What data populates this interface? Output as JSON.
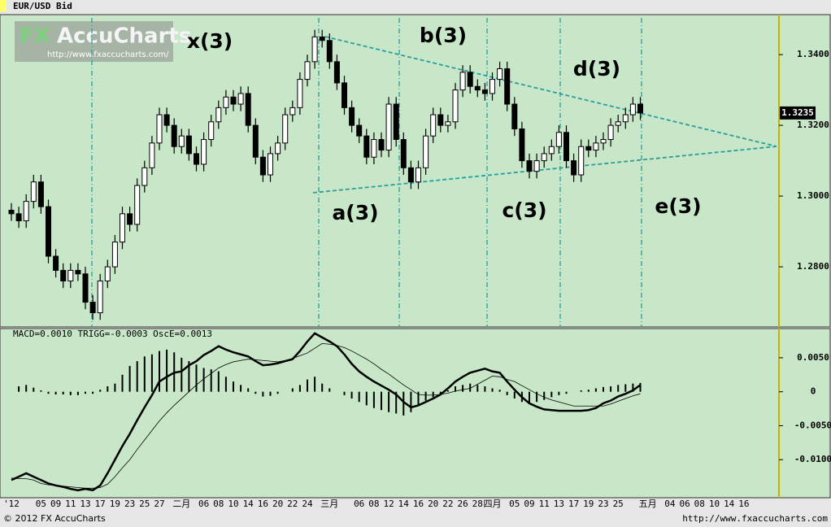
{
  "chart_data": [
    {
      "type": "candlestick",
      "title": "EUR/USD Bid",
      "watermark": [
        "FX",
        "AccuCharts",
        "http://www.fxaccucharts.com/"
      ],
      "annotations": [
        "x(3)",
        "b(3)",
        "d(3)",
        "a(3)",
        "c(3)",
        "e(3)"
      ],
      "last_label": "1.3235",
      "footer": [
        "© 2012 FX AccuCharts",
        "http://www.fxaccucharts.com"
      ],
      "background": "#c8e6c8",
      "up_color": "#ffffff",
      "down_color": "#000000",
      "categories": [
        "'12",
        null,
        null,
        null,
        "05",
        null,
        "09",
        null,
        "11",
        null,
        "13",
        null,
        "17",
        null,
        "19",
        null,
        "23",
        null,
        "25",
        null,
        "27",
        null,
        null,
        "二月",
        null,
        null,
        "06",
        null,
        "08",
        null,
        "10",
        null,
        "14",
        null,
        "16",
        null,
        "20",
        null,
        "22",
        null,
        "24",
        null,
        null,
        "三月",
        null,
        null,
        null,
        "06",
        null,
        "08",
        null,
        "12",
        null,
        "14",
        null,
        "16",
        null,
        "20",
        null,
        "22",
        null,
        "26",
        null,
        "28",
        null,
        "四月",
        null,
        null,
        "05",
        null,
        "09",
        null,
        "11",
        null,
        "13",
        null,
        "17",
        null,
        "19",
        null,
        "23",
        null,
        "25",
        null,
        null,
        null,
        "五月",
        null,
        null,
        "04",
        null,
        "06",
        null,
        "08",
        null,
        "10",
        null,
        "14",
        null,
        "16",
        null,
        null,
        null,
        null
      ],
      "open": [
        1.296,
        1.295,
        1.293,
        1.2985,
        1.304,
        1.297,
        1.283,
        1.279,
        1.276,
        1.279,
        1.278,
        1.27,
        1.267,
        1.276,
        1.28,
        1.287,
        1.295,
        1.292,
        1.303,
        1.308,
        1.315,
        1.323,
        1.32,
        1.314,
        1.317,
        1.312,
        1.309,
        1.316,
        1.321,
        1.325,
        1.328,
        1.326,
        1.329,
        1.32,
        1.311,
        1.306,
        1.312,
        1.315,
        1.323,
        1.325,
        1.333,
        1.338,
        1.345,
        1.344,
        1.338,
        1.332,
        1.325,
        1.32,
        1.317,
        1.311,
        1.316,
        1.313,
        1.326,
        1.316,
        1.308,
        1.304,
        1.308,
        1.317,
        1.323,
        1.32,
        1.321,
        1.33,
        1.335,
        1.331,
        1.33,
        1.329,
        1.333,
        1.336,
        1.326,
        1.319,
        1.31,
        1.307,
        1.31,
        1.312,
        1.314,
        1.318,
        1.31,
        1.306,
        1.314,
        1.313,
        1.315,
        1.316,
        1.32,
        1.321,
        1.323,
        1.326,
        null,
        null,
        null,
        null,
        null,
        null,
        null,
        null,
        null,
        null,
        null,
        null,
        null,
        null,
        null,
        null,
        null,
        null
      ],
      "high": [
        1.298,
        1.297,
        1.3005,
        1.306,
        1.306,
        1.299,
        1.285,
        1.281,
        1.281,
        1.281,
        1.28,
        1.272,
        1.278,
        1.282,
        1.289,
        1.297,
        1.297,
        1.305,
        1.31,
        1.317,
        1.325,
        1.325,
        1.322,
        1.319,
        1.319,
        1.314,
        1.318,
        1.323,
        1.327,
        1.33,
        1.33,
        1.331,
        1.331,
        1.322,
        1.313,
        1.314,
        1.317,
        1.325,
        1.327,
        1.335,
        1.34,
        1.347,
        1.347,
        1.346,
        1.34,
        1.334,
        1.327,
        1.322,
        1.319,
        1.318,
        1.318,
        1.328,
        1.328,
        1.318,
        1.31,
        1.31,
        1.319,
        1.325,
        1.325,
        1.323,
        1.332,
        1.337,
        1.337,
        1.333,
        1.332,
        1.335,
        1.338,
        1.338,
        1.328,
        1.321,
        1.312,
        1.312,
        1.314,
        1.316,
        1.32,
        1.32,
        1.312,
        1.316,
        1.316,
        1.317,
        1.318,
        1.322,
        1.323,
        1.325,
        1.328,
        1.328,
        null,
        null,
        null,
        null,
        null,
        null,
        null,
        null,
        null,
        null,
        null,
        null,
        null,
        null,
        null,
        null,
        null,
        null
      ],
      "low": [
        1.293,
        1.291,
        1.291,
        1.2965,
        1.295,
        1.281,
        1.277,
        1.274,
        1.274,
        1.276,
        1.268,
        1.265,
        1.265,
        1.274,
        1.278,
        1.285,
        1.29,
        1.29,
        1.301,
        1.306,
        1.313,
        1.318,
        1.312,
        1.312,
        1.31,
        1.307,
        1.307,
        1.314,
        1.319,
        1.323,
        1.324,
        1.324,
        1.318,
        1.309,
        1.304,
        1.304,
        1.31,
        1.313,
        1.321,
        1.323,
        1.331,
        1.336,
        1.342,
        1.336,
        1.33,
        1.323,
        1.318,
        1.315,
        1.309,
        1.309,
        1.311,
        1.311,
        1.314,
        1.306,
        1.302,
        1.302,
        1.306,
        1.315,
        1.318,
        1.318,
        1.319,
        1.328,
        1.329,
        1.328,
        1.327,
        1.327,
        1.331,
        1.324,
        1.317,
        1.308,
        1.305,
        1.305,
        1.308,
        1.31,
        1.312,
        1.308,
        1.304,
        1.304,
        1.311,
        1.311,
        1.313,
        1.314,
        1.318,
        1.319,
        1.321,
        1.3215,
        null,
        null,
        null,
        null,
        null,
        null,
        null,
        null,
        null,
        null,
        null,
        null,
        null,
        null,
        null,
        null,
        null,
        null
      ],
      "close": [
        1.295,
        1.293,
        1.2985,
        1.304,
        1.297,
        1.283,
        1.279,
        1.276,
        1.279,
        1.278,
        1.27,
        1.267,
        1.276,
        1.28,
        1.287,
        1.295,
        1.292,
        1.303,
        1.308,
        1.315,
        1.323,
        1.32,
        1.314,
        1.317,
        1.312,
        1.309,
        1.316,
        1.321,
        1.325,
        1.328,
        1.326,
        1.329,
        1.32,
        1.311,
        1.306,
        1.312,
        1.315,
        1.323,
        1.325,
        1.333,
        1.338,
        1.345,
        1.344,
        1.338,
        1.332,
        1.325,
        1.32,
        1.317,
        1.311,
        1.316,
        1.313,
        1.326,
        1.316,
        1.308,
        1.304,
        1.308,
        1.317,
        1.323,
        1.32,
        1.321,
        1.33,
        1.335,
        1.331,
        1.33,
        1.329,
        1.333,
        1.336,
        1.326,
        1.319,
        1.31,
        1.307,
        1.31,
        1.312,
        1.314,
        1.318,
        1.31,
        1.306,
        1.314,
        1.313,
        1.315,
        1.316,
        1.32,
        1.321,
        1.323,
        1.326,
        1.3235,
        null,
        null,
        null,
        null,
        null,
        null,
        null,
        null,
        null,
        null,
        null,
        null,
        null,
        null,
        null,
        null,
        null,
        null
      ],
      "ylim": [
        1.263,
        1.3513
      ],
      "yticks": [
        {
          "value": 1.28,
          "label": "1.2800"
        },
        {
          "value": 1.3,
          "label": "1.3000"
        },
        {
          "value": 1.32,
          "label": "1.3200"
        },
        {
          "value": 1.34,
          "label": "1.3400"
        }
      ]
    },
    {
      "type": "macd",
      "title": "MACD=0.0010 TRIGG=-0.0003 OscE=0.0013",
      "background": "#c8e6c8",
      "series": [
        {
          "color": "#000000",
          "style": "line",
          "width": 2.5,
          "values": [
            -0.013,
            -0.0125,
            -0.012,
            -0.0125,
            -0.013,
            -0.0135,
            -0.0138,
            -0.014,
            -0.0143,
            -0.0145,
            -0.0143,
            -0.0145,
            -0.0138,
            -0.012,
            -0.01,
            -0.008,
            -0.0062,
            -0.0042,
            -0.0023,
            -0.0005,
            0.0015,
            0.0022,
            0.0028,
            0.003,
            0.0039,
            0.0045,
            0.0054,
            0.006,
            0.0067,
            0.0062,
            0.0058,
            0.0055,
            0.0052,
            0.0045,
            0.0039,
            0.004,
            0.0042,
            0.0045,
            0.0048,
            0.006,
            0.0074,
            0.0086,
            0.008,
            0.0074,
            0.0067,
            0.0055,
            0.0041,
            0.003,
            0.0022,
            0.0015,
            0.0009,
            0.0003,
            -0.0004,
            -0.0015,
            -0.0023,
            -0.002,
            -0.0015,
            -0.001,
            -0.0004,
            0.0005,
            0.0015,
            0.0022,
            0.0028,
            0.0031,
            0.0034,
            0.003,
            0.0028,
            0.0015,
            0.0003,
            -0.0008,
            -0.0017,
            -0.0022,
            -0.0026,
            -0.0027,
            -0.0028,
            -0.0028,
            -0.0028,
            -0.0028,
            -0.0027,
            -0.0024,
            -0.0017,
            -0.0013,
            -0.0007,
            -0.0003,
            0.0002,
            0.001,
            null,
            null,
            null,
            null,
            null,
            null,
            null,
            null,
            null,
            null,
            null,
            null,
            null,
            null,
            null,
            null,
            null,
            null
          ]
        },
        {
          "color": "#000000",
          "style": "line",
          "width": 0.8,
          "values": [
            -0.0127,
            -0.0128,
            -0.0128,
            -0.013,
            -0.0135,
            -0.0137,
            -0.0138,
            -0.0139,
            -0.014,
            -0.0141,
            -0.0142,
            -0.0142,
            -0.0141,
            -0.0136,
            -0.0125,
            -0.0112,
            -0.01,
            -0.0085,
            -0.0071,
            -0.0057,
            -0.0043,
            -0.0031,
            -0.002,
            -0.001,
            0.0,
            0.001,
            0.0019,
            0.0027,
            0.0035,
            0.004,
            0.0044,
            0.0046,
            0.0048,
            0.0047,
            0.0046,
            0.0045,
            0.0044,
            0.0046,
            0.0049,
            0.0053,
            0.0057,
            0.0064,
            0.0071,
            0.007,
            0.0068,
            0.0065,
            0.006,
            0.0054,
            0.0048,
            0.0041,
            0.0033,
            0.0026,
            0.0018,
            0.001,
            0.0003,
            -0.0004,
            -0.0005,
            -0.0005,
            -0.0004,
            -0.0002,
            0.0001,
            0.0003,
            0.0005,
            0.0011,
            0.0017,
            0.0023,
            0.0022,
            0.0018,
            0.0015,
            0.0009,
            0.0003,
            -0.0003,
            -0.0008,
            -0.0012,
            -0.0015,
            -0.0018,
            -0.0021,
            -0.0021,
            -0.0021,
            -0.0021,
            -0.0021,
            -0.0018,
            -0.0014,
            -0.001,
            -0.0006,
            -0.0003,
            null,
            null,
            null,
            null,
            null,
            null,
            null,
            null,
            null,
            null,
            null,
            null,
            null,
            null,
            null,
            null,
            null,
            null
          ]
        },
        {
          "color": "#000000",
          "style": "histogram",
          "width": 2,
          "values": [
            0.0,
            0.0008,
            0.001,
            0.0006,
            0.0002,
            -0.0003,
            -0.0004,
            -0.0004,
            -0.0005,
            -0.0005,
            -0.0003,
            -0.0003,
            0.0003,
            0.0008,
            0.0012,
            0.0025,
            0.0038,
            0.0045,
            0.0052,
            0.0055,
            0.006,
            0.0062,
            0.0058,
            0.005,
            0.0045,
            0.004,
            0.0035,
            0.0033,
            0.003,
            0.0022,
            0.0015,
            0.001,
            0.0005,
            -0.0003,
            -0.0007,
            -0.0006,
            -0.0003,
            0.0,
            0.0005,
            0.001,
            0.0018,
            0.0022,
            0.0012,
            0.0005,
            0.0,
            -0.0005,
            -0.001,
            -0.0015,
            -0.002,
            -0.0024,
            -0.0027,
            -0.003,
            -0.0032,
            -0.0035,
            -0.003,
            -0.002,
            -0.0013,
            -0.0008,
            -0.0003,
            0.0002,
            0.0008,
            0.001,
            0.0012,
            0.001,
            0.0008,
            0.0005,
            0.0003,
            -0.0005,
            -0.001,
            -0.0015,
            -0.0018,
            -0.0015,
            -0.0012,
            -0.0008,
            -0.0005,
            -0.0003,
            0.0,
            0.0002,
            0.0003,
            0.0005,
            0.0007,
            0.0008,
            0.001,
            0.0011,
            0.0012,
            0.0013,
            null,
            null,
            null,
            null,
            null,
            null,
            null,
            null,
            null,
            null,
            null,
            null,
            null,
            null,
            null,
            null,
            null,
            null
          ]
        }
      ],
      "ylim": [
        -0.0156,
        0.0093
      ],
      "yticks": [
        {
          "value": -0.01,
          "label": "-0.0100"
        },
        {
          "value": -0.005,
          "label": "-0.0050"
        },
        0,
        {
          "value": 0.005,
          "label": "0.0050"
        }
      ]
    }
  ]
}
